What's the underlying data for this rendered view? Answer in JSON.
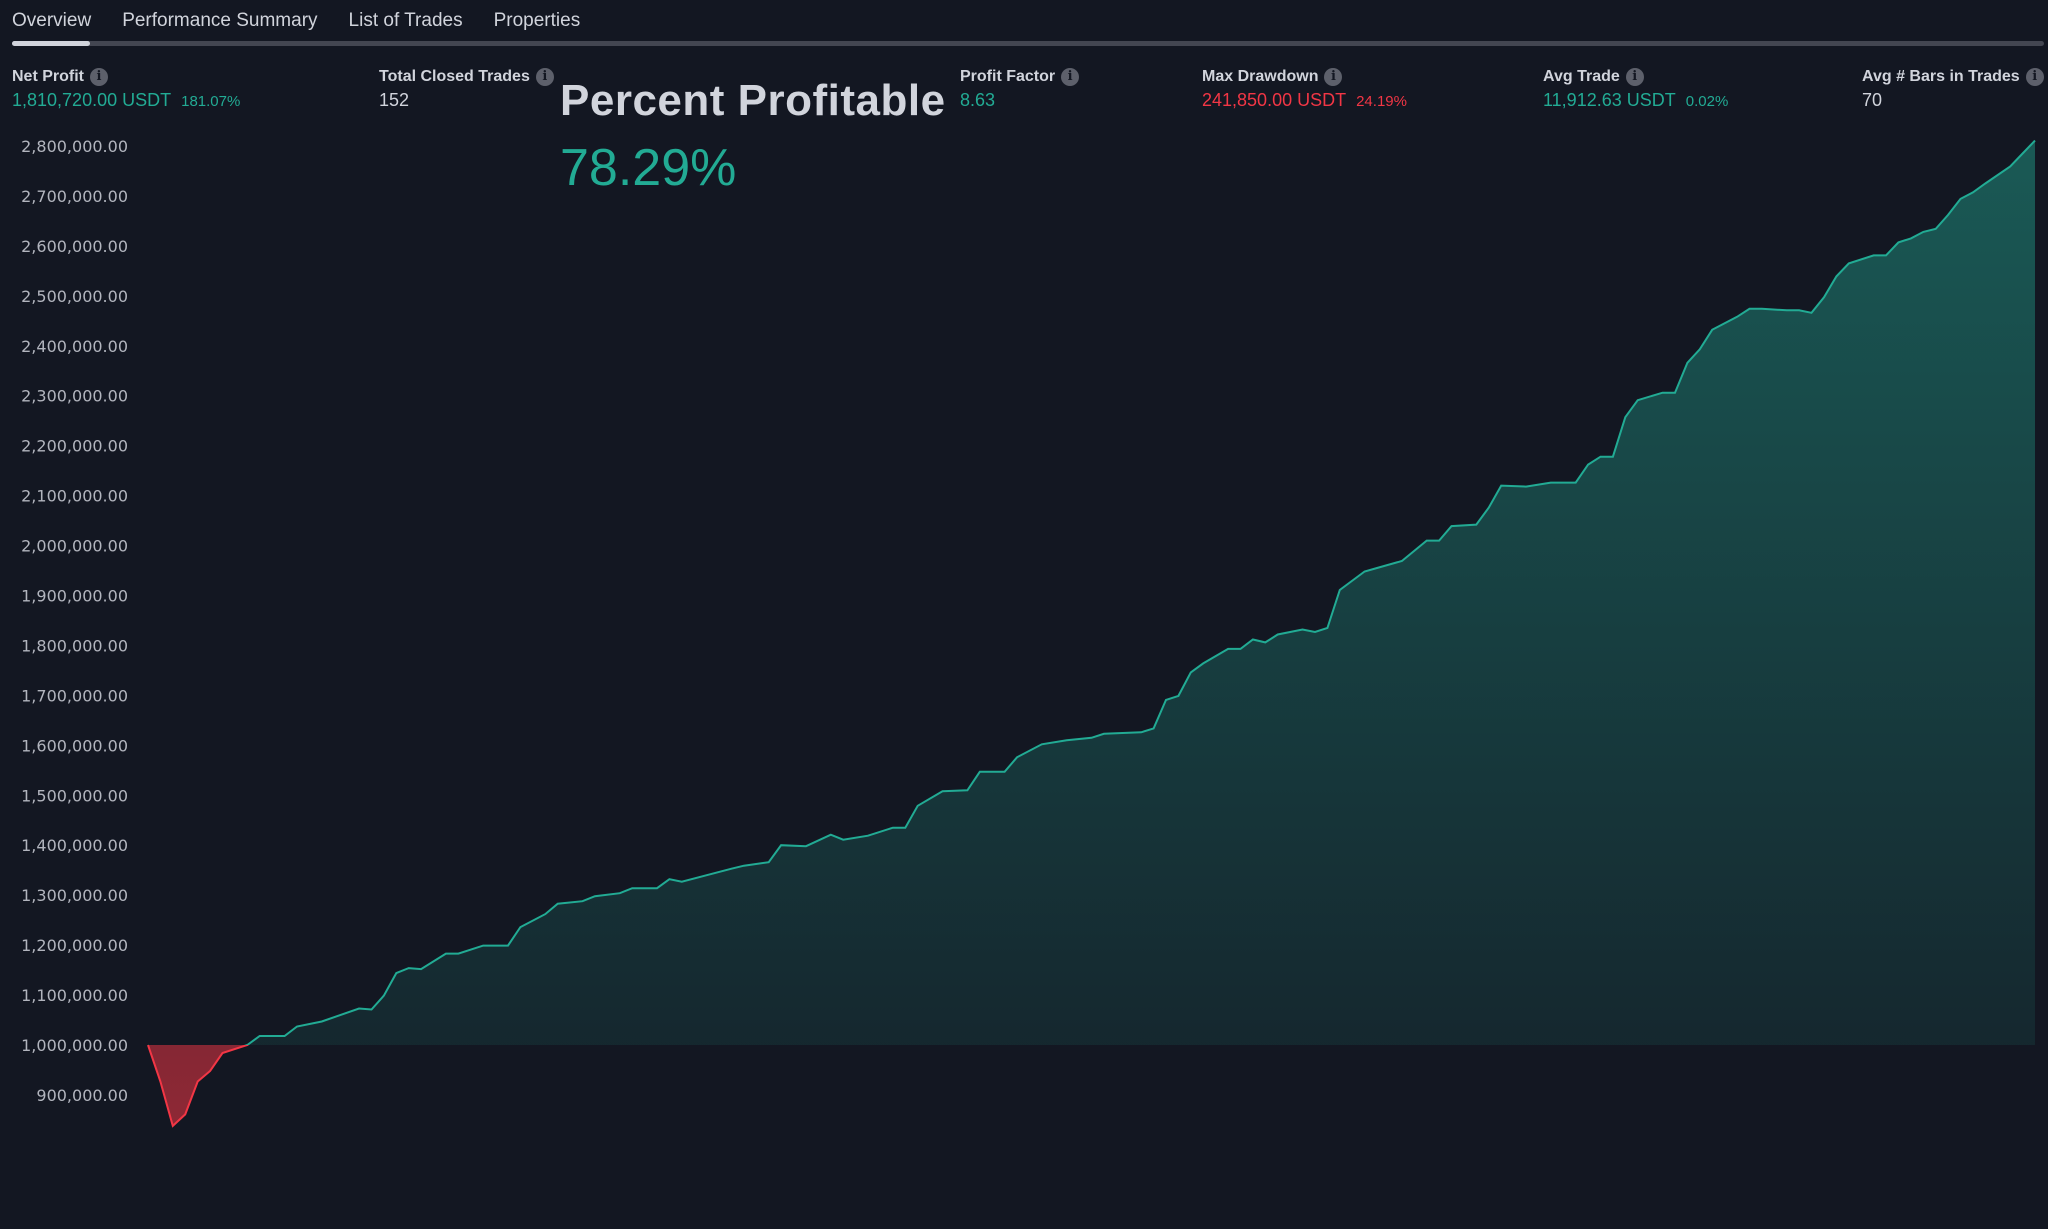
{
  "tabs": [
    {
      "label": "Overview",
      "active": true
    },
    {
      "label": "Performance Summary",
      "active": false
    },
    {
      "label": "List of Trades",
      "active": false
    },
    {
      "label": "Properties",
      "active": false
    }
  ],
  "stats": {
    "net_profit": {
      "label": "Net Profit",
      "value": "1,810,720.00 USDT",
      "sub": "181.07%"
    },
    "total_closed_trades": {
      "label": "Total Closed Trades",
      "value": "152"
    },
    "profit_factor": {
      "label": "Profit Factor",
      "value": "8.63"
    },
    "max_drawdown": {
      "label": "Max Drawdown",
      "value": "241,850.00 USDT",
      "sub": "24.19%"
    },
    "avg_trade": {
      "label": "Avg Trade",
      "value": "11,912.63 USDT",
      "sub": "0.02%"
    },
    "avg_bars": {
      "label": "Avg # Bars in Trades",
      "value": "70"
    }
  },
  "overlay": {
    "title": "Percent Profitable",
    "value": "78.29%"
  },
  "colors": {
    "background": "#131722",
    "profit": "#22ab94",
    "loss": "#f23645",
    "text": "#d1d4dc"
  },
  "chart_data": {
    "type": "area",
    "baseline": 1000000,
    "ylim": [
      700000,
      2850000
    ],
    "xlim": [
      0,
      152
    ],
    "yticks": [
      "2,800,000.00",
      "2,700,000.00",
      "2,600,000.00",
      "2,500,000.00",
      "2,400,000.00",
      "2,300,000.00",
      "2,200,000.00",
      "2,100,000.00",
      "2,000,000.00",
      "1,900,000.00",
      "1,800,000.00",
      "1,700,000.00",
      "1,600,000.00",
      "1,500,000.00",
      "1,400,000.00",
      "1,300,000.00",
      "1,200,000.00",
      "1,100,000.00",
      "1,000,000.00",
      "900,000.00"
    ],
    "ytick_values": [
      2800000,
      2700000,
      2600000,
      2500000,
      2400000,
      2300000,
      2200000,
      2100000,
      2000000,
      1900000,
      1800000,
      1700000,
      1600000,
      1500000,
      1400000,
      1300000,
      1200000,
      1100000,
      1000000,
      900000
    ],
    "points": [
      [
        0,
        1000000
      ],
      [
        1,
        927000
      ],
      [
        2,
        838000
      ],
      [
        3,
        861000
      ],
      [
        4,
        927000
      ],
      [
        5,
        948000
      ],
      [
        6,
        984000
      ],
      [
        8,
        1000000
      ],
      [
        9,
        1018000
      ],
      [
        11,
        1018000
      ],
      [
        12,
        1037000
      ],
      [
        14,
        1047000
      ],
      [
        17,
        1073000
      ],
      [
        18,
        1071000
      ],
      [
        19,
        1099000
      ],
      [
        20,
        1144000
      ],
      [
        21,
        1154000
      ],
      [
        22,
        1152000
      ],
      [
        24,
        1183000
      ],
      [
        25,
        1183000
      ],
      [
        27,
        1199000
      ],
      [
        29,
        1199000
      ],
      [
        30,
        1236000
      ],
      [
        32,
        1262000
      ],
      [
        33,
        1283000
      ],
      [
        35,
        1288000
      ],
      [
        36,
        1298000
      ],
      [
        38,
        1304000
      ],
      [
        39,
        1314000
      ],
      [
        41,
        1314000
      ],
      [
        42,
        1332000
      ],
      [
        43,
        1327000
      ],
      [
        45,
        1340000
      ],
      [
        47,
        1353000
      ],
      [
        48,
        1359000
      ],
      [
        50,
        1366000
      ],
      [
        51,
        1400000
      ],
      [
        53,
        1398000
      ],
      [
        55,
        1421000
      ],
      [
        56,
        1411000
      ],
      [
        58,
        1419000
      ],
      [
        60,
        1435000
      ],
      [
        61,
        1435000
      ],
      [
        62,
        1479000
      ],
      [
        64,
        1508000
      ],
      [
        66,
        1510000
      ],
      [
        67,
        1547000
      ],
      [
        69,
        1547000
      ],
      [
        70,
        1576000
      ],
      [
        72,
        1602000
      ],
      [
        74,
        1610000
      ],
      [
        76,
        1615000
      ],
      [
        77,
        1623000
      ],
      [
        80,
        1626000
      ],
      [
        81,
        1634000
      ],
      [
        82,
        1691000
      ],
      [
        83,
        1699000
      ],
      [
        84,
        1746000
      ],
      [
        85,
        1764000
      ],
      [
        87,
        1793000
      ],
      [
        88,
        1793000
      ],
      [
        89,
        1812000
      ],
      [
        90,
        1806000
      ],
      [
        91,
        1822000
      ],
      [
        93,
        1832000
      ],
      [
        94,
        1827000
      ],
      [
        95,
        1835000
      ],
      [
        96,
        1911000
      ],
      [
        98,
        1948000
      ],
      [
        99,
        1955000
      ],
      [
        101,
        1969000
      ],
      [
        103,
        2010000
      ],
      [
        104,
        2010000
      ],
      [
        105,
        2039000
      ],
      [
        107,
        2042000
      ],
      [
        108,
        2076000
      ],
      [
        109,
        2120000
      ],
      [
        111,
        2118000
      ],
      [
        113,
        2126000
      ],
      [
        115,
        2126000
      ],
      [
        116,
        2162000
      ],
      [
        117,
        2178000
      ],
      [
        118,
        2178000
      ],
      [
        119,
        2257000
      ],
      [
        120,
        2291000
      ],
      [
        122,
        2306000
      ],
      [
        123,
        2306000
      ],
      [
        124,
        2366000
      ],
      [
        125,
        2393000
      ],
      [
        126,
        2432000
      ],
      [
        128,
        2458000
      ],
      [
        129,
        2474000
      ],
      [
        130,
        2474000
      ],
      [
        132,
        2471000
      ],
      [
        133,
        2471000
      ],
      [
        134,
        2466000
      ],
      [
        135,
        2497000
      ],
      [
        136,
        2539000
      ],
      [
        137,
        2565000
      ],
      [
        139,
        2581000
      ],
      [
        140,
        2581000
      ],
      [
        141,
        2607000
      ],
      [
        142,
        2615000
      ],
      [
        143,
        2628000
      ],
      [
        144,
        2634000
      ],
      [
        145,
        2662000
      ],
      [
        146,
        2694000
      ],
      [
        147,
        2707000
      ],
      [
        148,
        2725000
      ],
      [
        150,
        2759000
      ],
      [
        151,
        2785000
      ],
      [
        152,
        2810720
      ]
    ]
  }
}
